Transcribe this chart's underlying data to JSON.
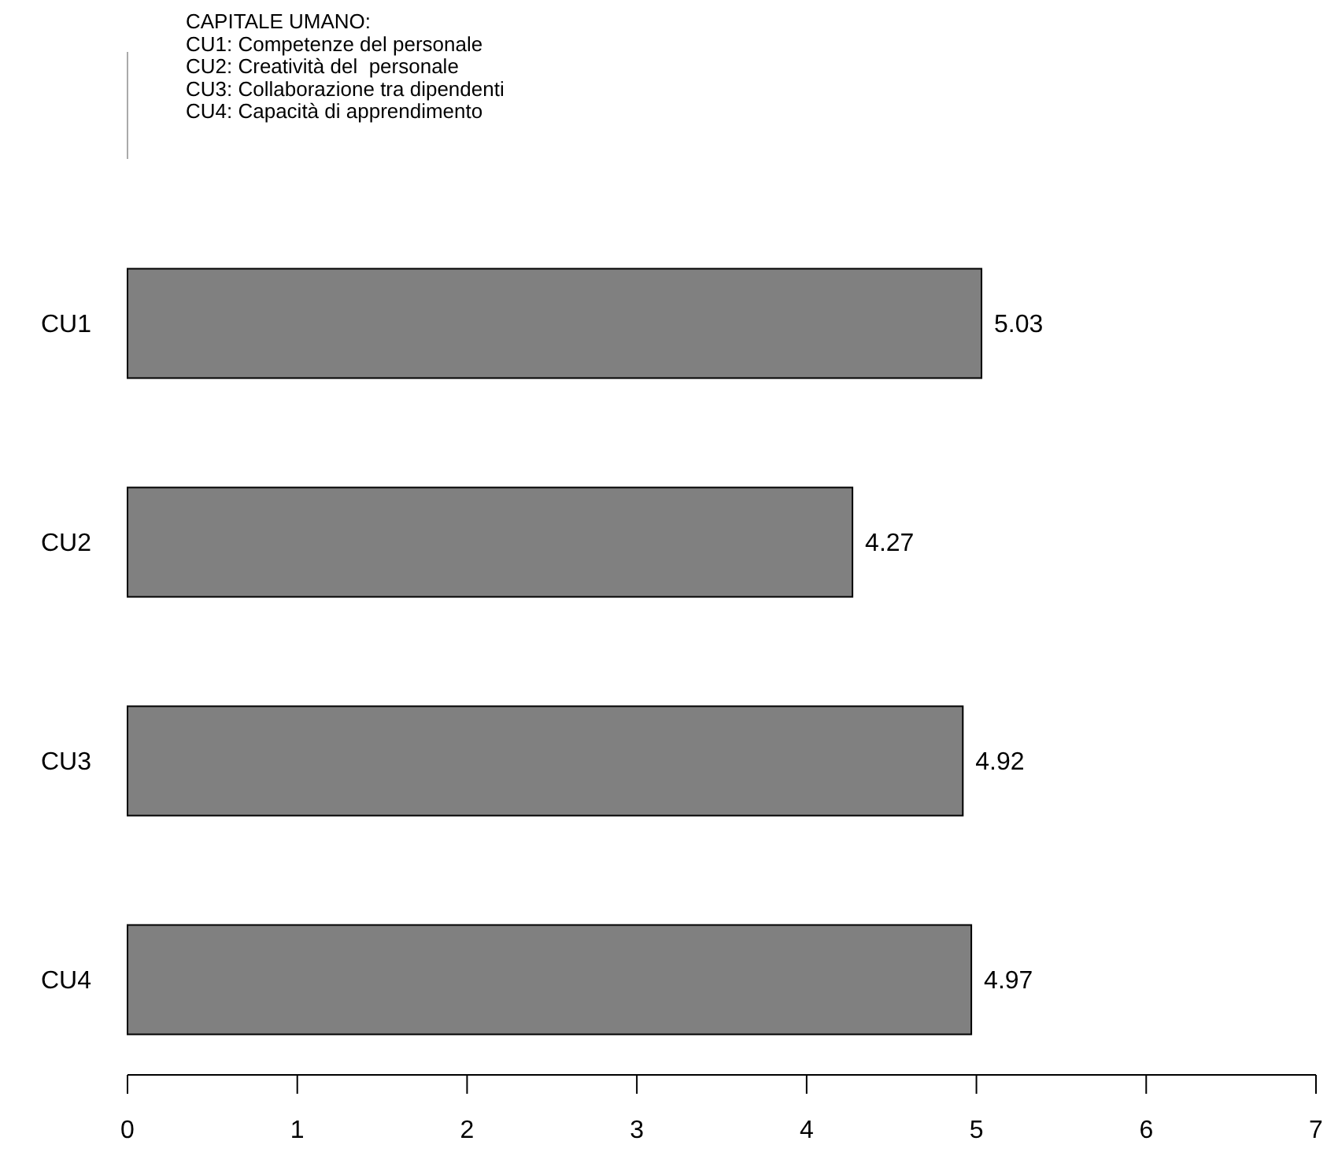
{
  "chart_data": {
    "type": "bar",
    "orientation": "horizontal",
    "categories": [
      "CU1",
      "CU2",
      "CU3",
      "CU4"
    ],
    "values": [
      5.03,
      4.27,
      4.92,
      4.97
    ],
    "color": "#808080",
    "data_labels": true,
    "xlim": [
      0,
      7
    ],
    "xticks": [
      0,
      1,
      2,
      3,
      4,
      5,
      6,
      7
    ],
    "annotations": [
      "CAPITALE UMANO:",
      "CU1: Competenze del personale",
      "CU2: Creatività del  personale",
      "CU3: Collaborazione tra dipendenti",
      "CU4: Capacità di apprendimento"
    ]
  }
}
